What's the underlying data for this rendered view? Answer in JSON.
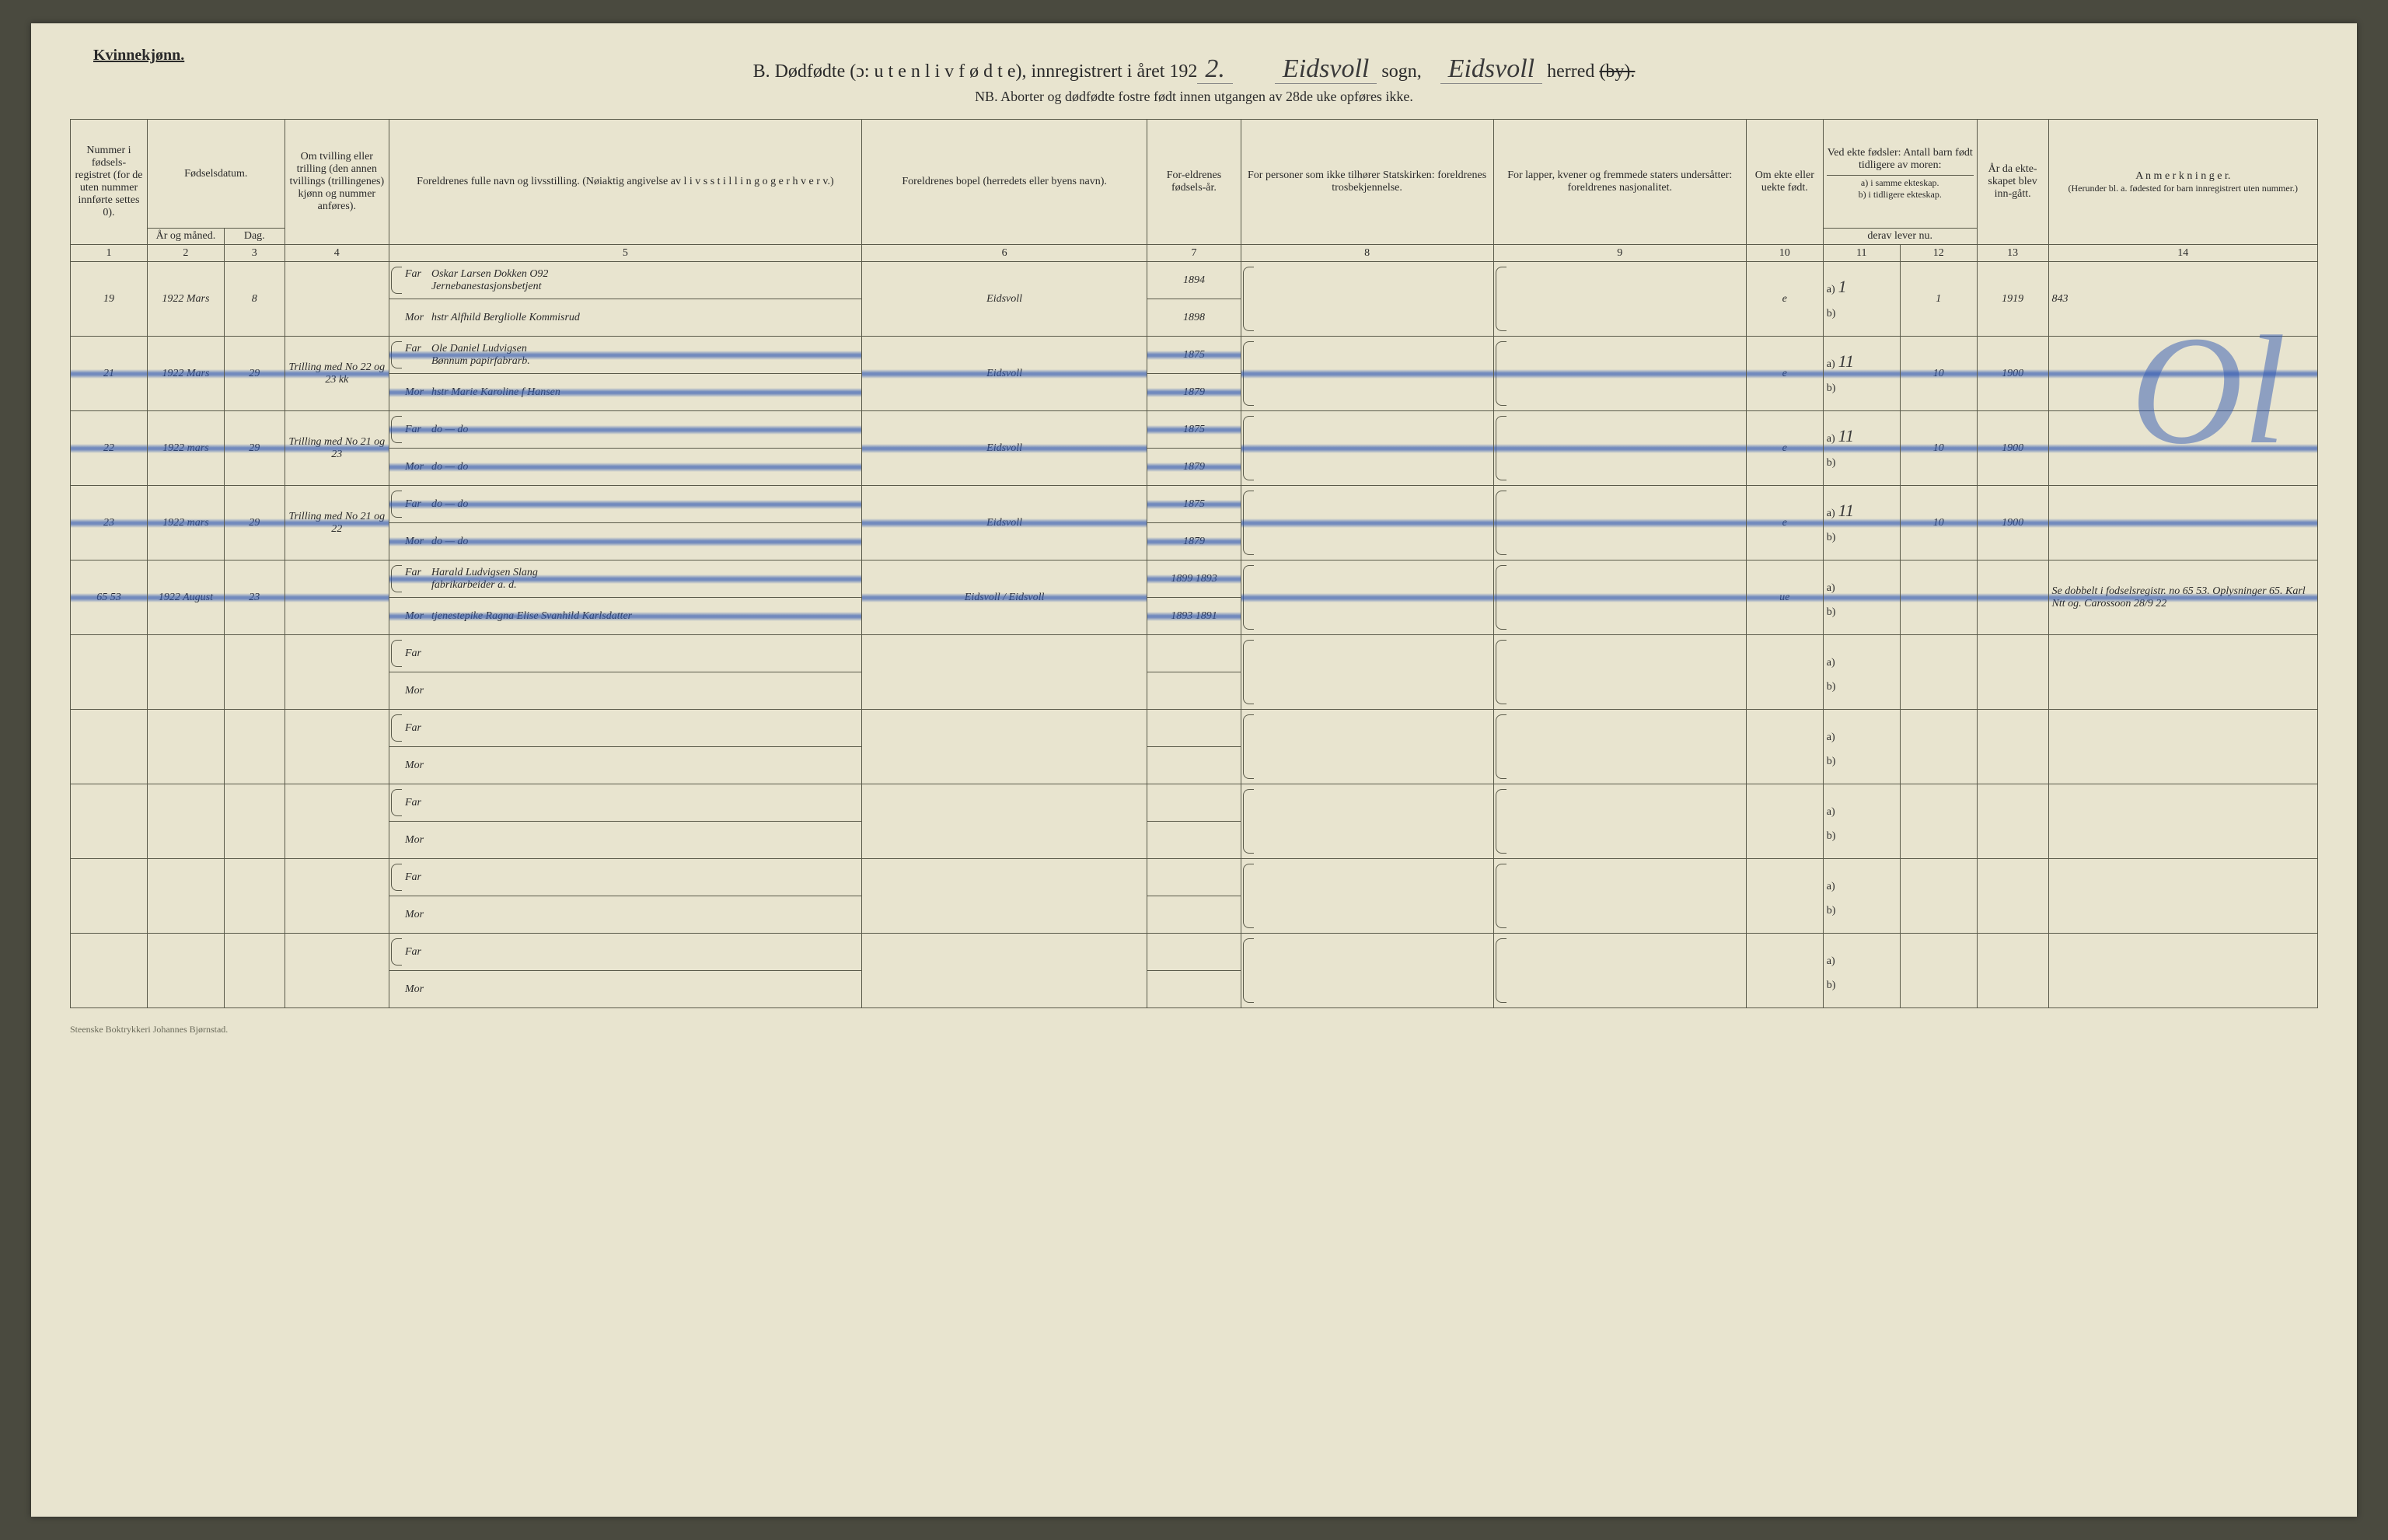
{
  "page": {
    "gender_label": "Kvinnekjønn.",
    "title_prefix": "B.  Dødfødte (ɔ:  u t e n  l i v  f ø d t e), innregistrert i året 192",
    "title_year_suffix": "2.",
    "sogn_label": "sogn,",
    "sogn_value": "Eidsvoll",
    "herred_label": "herred",
    "herred_struck": "(by).",
    "herred_value": "Eidsvoll",
    "subtitle": "NB.  Aborter og dødfødte fostre født innen utgangen av 28de uke opføres ikke.",
    "imprint": "Steenske Boktrykkeri Johannes Bjørnstad."
  },
  "headers": {
    "c1": "Nummer i fødsels-registret (for de uten nummer innførte settes 0).",
    "c2": "Fødselsdatum.",
    "c2a": "År og måned.",
    "c2b": "Dag.",
    "c3": "Om tvilling eller trilling (den annen tvillings (trillingenes) kjønn og nummer anføres).",
    "c4": "Foreldrenes fulle navn og livsstilling. (Nøiaktig angivelse av  l i v s s t i l l i n g  o g  e r h v e r v.)",
    "c5": "Foreldrenes bopel (herredets eller byens navn).",
    "c6": "For-eldrenes fødsels-år.",
    "c7": "For personer som ikke tilhører Statskirken: foreldrenes trosbekjennelse.",
    "c8": "For lapper, kvener og fremmede staters undersåtter: foreldrenes nasjonalitet.",
    "c9": "Om ekte eller uekte født.",
    "c10": "Ved ekte fødsler: Antall barn født tidligere av moren:",
    "c10a": "a) i samme ekteskap.",
    "c10b": "b) i tidligere ekteskap.",
    "c10c": "derav lever nu.",
    "c11": "År da ekte-skapet blev inn-gått.",
    "c12": "A n m e r k n i n g e r.",
    "c12sub": "(Herunder bl. a. fødested for barn innregistrert uten nummer.)",
    "far": "Far",
    "mor": "Mor"
  },
  "colnums": [
    "1",
    "2",
    "3",
    "4",
    "5",
    "6",
    "7",
    "8",
    "9",
    "10",
    "11",
    "12",
    "13",
    "14"
  ],
  "rows": [
    {
      "num": "19",
      "year_month": "1922 Mars",
      "day": "8",
      "twin": "",
      "far": "Oskar Larsen Dokken O92",
      "far_line2": "Jernebanestasjonsbetjent",
      "mor": "hstr Alfhild Bergliolle Kommisrud",
      "addr": "Eidsvoll",
      "far_by": "1894",
      "mor_by": "1898",
      "ekte": "e",
      "c11a": "1",
      "c11b": "",
      "c12": "1",
      "maryr": "1919",
      "notes": "843",
      "struck": false
    },
    {
      "num": "21",
      "year_month": "1922 Mars",
      "day": "29",
      "twin": "Trilling med No 22 og 23 kk",
      "far": "Ole Daniel Ludvigsen",
      "far_line2": "Bønnum papirfabrarb.",
      "mor": "hstr Marie Karoline f Hansen",
      "addr": "Eidsvoll",
      "far_by": "1875",
      "mor_by": "1879",
      "ekte": "e",
      "c11a": "11",
      "c11b": "",
      "c12": "10",
      "maryr": "1900",
      "notes": "",
      "struck": true
    },
    {
      "num": "22",
      "year_month": "1922 mars",
      "day": "29",
      "twin": "Trilling med No 21 og 23",
      "far": "do — do",
      "far_line2": "",
      "mor": "do — do",
      "addr": "Eidsvoll",
      "far_by": "1875",
      "mor_by": "1879",
      "ekte": "e",
      "c11a": "11",
      "c11b": "",
      "c12": "10",
      "maryr": "1900",
      "notes": "",
      "struck": true
    },
    {
      "num": "23",
      "year_month": "1922 mars",
      "day": "29",
      "twin": "Trilling med No 21 og 22",
      "far": "do — do",
      "far_line2": "",
      "mor": "do — do",
      "addr": "Eidsvoll",
      "far_by": "1875",
      "mor_by": "1879",
      "ekte": "e",
      "c11a": "11",
      "c11b": "",
      "c12": "10",
      "maryr": "1900",
      "notes": "",
      "struck": true
    },
    {
      "num": "65 53",
      "year_month": "1922 August",
      "day": "23",
      "twin": "",
      "far": "Harald Ludvigsen Slang",
      "far_line2": "fabrikarbeider a. d.",
      "mor": "tjenestepike Ragna Elise Svanhild Karlsdatter",
      "addr": "Eidsvoll / Eidsvoll",
      "far_by": "1899 1893",
      "mor_by": "1893 1891",
      "ekte": "ue",
      "c11a": "",
      "c11b": "",
      "c12": "",
      "maryr": "",
      "notes": "Se dobbelt i fodselsregistr. no 65 53. Oplysninger 65. Karl Ntt og. Carossoon 28/9 22",
      "struck": true
    }
  ],
  "blue_overlay": "Ol"
}
